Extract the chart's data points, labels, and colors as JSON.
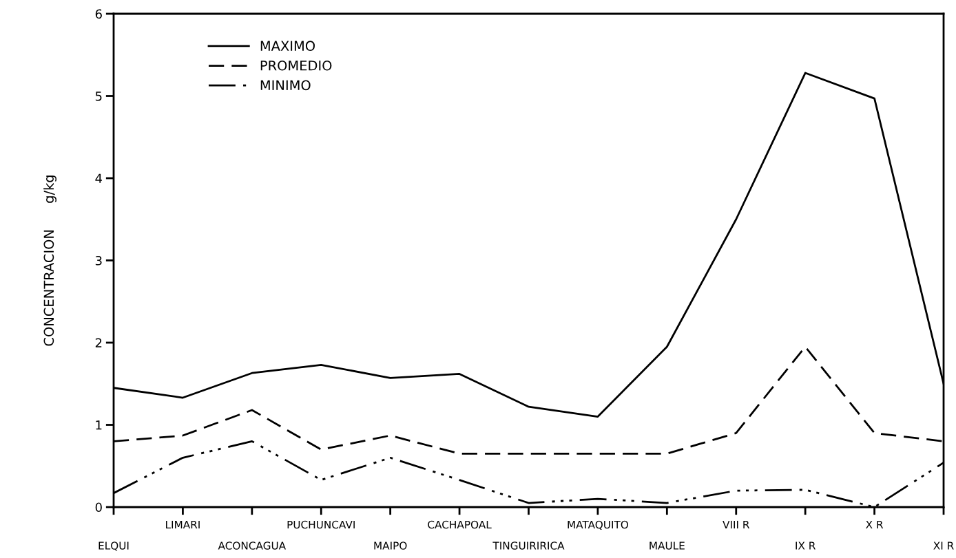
{
  "chart_data": {
    "type": "line",
    "ylabel": "CONCENTRACION      g/kg",
    "categories": [
      "ELQUI",
      "LIMARI",
      "ACONCAGUA",
      "PUCHUNCAVI",
      "MAIPO",
      "CACHAPOAL",
      "TINGUIRIRICA",
      "MATAQUITO",
      "MAULE",
      "VIII R",
      "IX R",
      "X R",
      "XI R"
    ],
    "series": [
      {
        "name": "MAXIMO",
        "color": "#000000",
        "line_style": "solid",
        "values": [
          1.45,
          1.33,
          1.63,
          1.73,
          1.57,
          1.62,
          1.22,
          1.1,
          1.95,
          3.5,
          5.28,
          4.97,
          1.5
        ]
      },
      {
        "name": "PROMEDIO",
        "color": "#000000",
        "line_style": "dashed",
        "values": [
          0.8,
          0.87,
          1.18,
          0.7,
          0.87,
          0.65,
          0.65,
          0.65,
          0.65,
          0.9,
          1.95,
          0.9,
          0.8
        ]
      },
      {
        "name": "MINIMO",
        "color": "#000000",
        "line_style": "dashdotdot",
        "values": [
          0.17,
          0.6,
          0.8,
          0.33,
          0.6,
          0.33,
          0.05,
          0.1,
          0.05,
          0.2,
          0.21,
          0.0,
          0.54
        ]
      }
    ],
    "ylim": [
      0,
      6
    ],
    "yticks": [
      0,
      1,
      2,
      3,
      4,
      5,
      6
    ],
    "legend": "top left",
    "grid": false,
    "marker": "none"
  }
}
